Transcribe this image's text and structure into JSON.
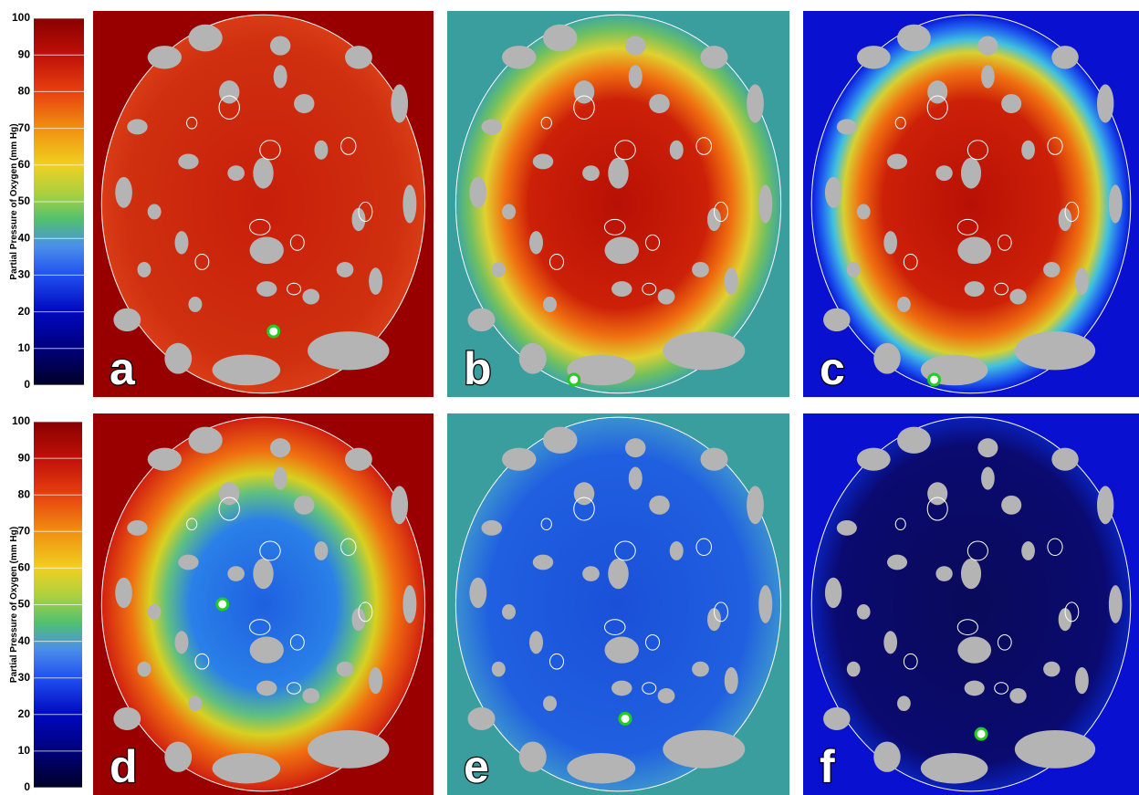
{
  "colorbars": [
    {
      "label": "Partial Pressure of Oxygen (mm Hg)",
      "lim": [
        0,
        100
      ],
      "ticks": [
        0,
        10,
        20,
        30,
        40,
        50,
        60,
        70,
        80,
        90,
        100
      ]
    },
    {
      "label": "Partial Pressure of Oxygen (mm Hg)",
      "lim": [
        0,
        100
      ],
      "ticks": [
        0,
        10,
        20,
        30,
        40,
        50,
        60,
        70,
        80,
        90,
        100
      ]
    }
  ],
  "panels": [
    {
      "label": "a"
    },
    {
      "label": "b"
    },
    {
      "label": "c"
    },
    {
      "label": "d"
    },
    {
      "label": "e"
    },
    {
      "label": "f"
    }
  ]
}
